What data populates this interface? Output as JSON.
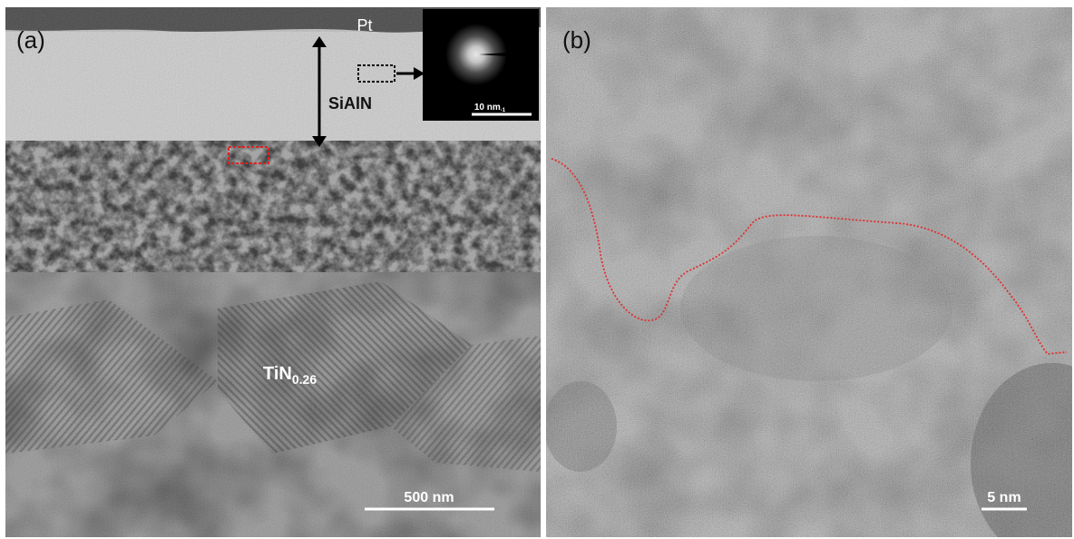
{
  "panels": [
    {
      "label": "(a)",
      "annotations": {
        "top_layer": "Pt",
        "coating": "SiAlN",
        "substrate": "TiN",
        "substrate_subscript": "0.26"
      },
      "inset": {
        "scale_bar": "10 nm",
        "scale_unit_exponent": "-1"
      },
      "scale_bar": "500 nm"
    },
    {
      "label": "(b)",
      "scale_bar": "5 nm"
    }
  ]
}
